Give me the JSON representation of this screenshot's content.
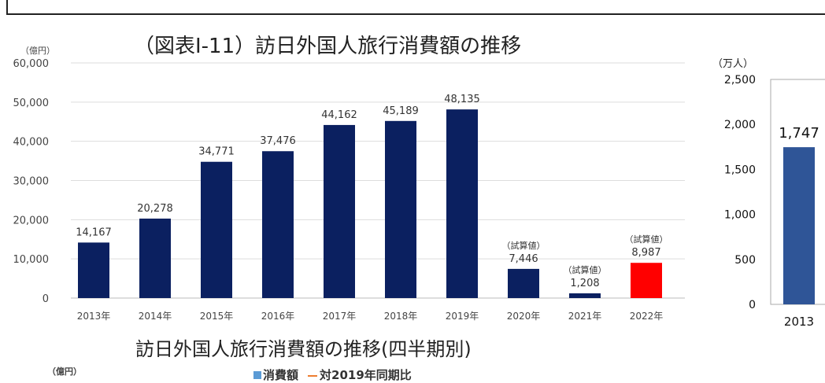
{
  "chart_data": [
    {
      "type": "bar",
      "title": "（図表Ⅰ-11）訪日外国人旅行消費額の推移",
      "ylabel": "（億円）",
      "ylim": [
        0,
        60000
      ],
      "yticks": [
        "0",
        "10,000",
        "20,000",
        "30,000",
        "40,000",
        "50,000",
        "60,000"
      ],
      "grid": true,
      "categories": [
        "2013年",
        "2014年",
        "2015年",
        "2016年",
        "2017年",
        "2018年",
        "2019年",
        "2020年",
        "2021年",
        "2022年"
      ],
      "values": [
        14167,
        20278,
        34771,
        37476,
        44162,
        45189,
        48135,
        7446,
        1208,
        8987
      ],
      "value_labels": [
        "14,167",
        "20,278",
        "34,771",
        "37,476",
        "44,162",
        "45,189",
        "48,135",
        "7,446",
        "1,208",
        "8,987"
      ],
      "annotations": [
        "",
        "",
        "",
        "",
        "",
        "",
        "",
        "（試算値）",
        "（試算値）",
        "（試算値）"
      ],
      "colors": [
        "#0b2060",
        "#0b2060",
        "#0b2060",
        "#0b2060",
        "#0b2060",
        "#0b2060",
        "#0b2060",
        "#0b2060",
        "#0b2060",
        "#ff0000"
      ]
    },
    {
      "type": "bar",
      "ylabel": "（万人）",
      "ylim": [
        0,
        2500
      ],
      "yticks": [
        "0",
        "500",
        "1,000",
        "1,500",
        "2,000",
        "2,500"
      ],
      "categories": [
        "2013"
      ],
      "values": [
        1747
      ],
      "value_labels": [
        "1,747"
      ],
      "colors": [
        "#2f5597"
      ]
    },
    {
      "type": "bar",
      "title": "訪日外国人旅行消費額の推移(四半期別)",
      "ylabel": "（億円）",
      "legend": [
        "消費額",
        "対2019年同期比"
      ],
      "legend_colors": [
        "#5b9bd5",
        "#ed7d31"
      ]
    }
  ]
}
